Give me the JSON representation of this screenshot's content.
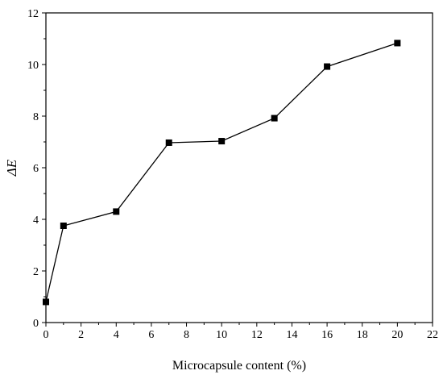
{
  "chart_data": {
    "type": "line",
    "title": "",
    "xlabel": "Microcapsule content (%)",
    "ylabel": "ΔE",
    "xlim": [
      0,
      22
    ],
    "ylim": [
      0,
      12
    ],
    "x_ticks": [
      0,
      2,
      4,
      6,
      8,
      10,
      12,
      14,
      16,
      18,
      20,
      22
    ],
    "y_ticks": [
      0,
      2,
      4,
      6,
      8,
      10,
      12
    ],
    "grid": false,
    "legend": "none",
    "marker": "square",
    "series": [
      {
        "x": [
          0,
          1,
          4,
          7,
          10,
          13,
          16,
          20
        ],
        "y": [
          0.8,
          3.75,
          4.3,
          6.97,
          7.03,
          7.92,
          9.92,
          10.83
        ],
        "color": "#000000"
      }
    ]
  }
}
